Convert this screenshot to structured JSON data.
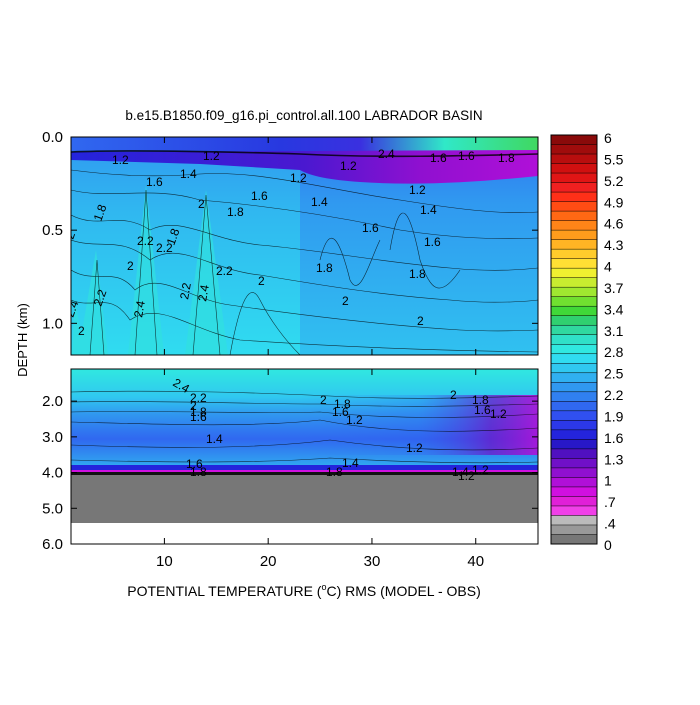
{
  "chart_data": {
    "type": "heatmap",
    "title": "b.e15.B1850.f09_g16.pi_control.all.100 LABRADOR BASIN",
    "xlabel": "POTENTIAL TEMPERATURE (",
    "xlabel_unit": "C) RMS (MODEL - OBS)",
    "xlabel_degree": "o",
    "ylabel": "DEPTH (km)",
    "xlim": [
      1,
      46
    ],
    "x_ticks": [
      10,
      20,
      30,
      40
    ],
    "x_tick_labels": [
      "10",
      "20",
      "30",
      "40"
    ],
    "upper_panel": {
      "ylim": [
        0,
        1.17
      ],
      "y_ticks": [
        0.0,
        0.5,
        1.0
      ],
      "y_tick_labels": [
        "0.0",
        "0.5",
        "1.0"
      ]
    },
    "lower_panel": {
      "ylim": [
        1.1,
        6.0
      ],
      "y_ticks": [
        2.0,
        3.0,
        4.0,
        5.0,
        6.0
      ],
      "y_tick_labels": [
        "2.0",
        "3.0",
        "4.0",
        "5.0",
        "6.0"
      ]
    },
    "colorbar": {
      "labels": [
        "6",
        "5.5",
        "5.2",
        "4.9",
        "4.6",
        "4.3",
        "4",
        "3.7",
        "3.4",
        "3.1",
        "2.8",
        "2.5",
        "2.2",
        "1.9",
        "1.6",
        "1.3",
        "1",
        ".7",
        ".4",
        "0"
      ],
      "colors": [
        "#8a0a0a",
        "#a00c0c",
        "#b80e0e",
        "#d01010",
        "#e01515",
        "#f02020",
        "#ff3018",
        "#ff4c14",
        "#ff6814",
        "#ff8418",
        "#ff9c1c",
        "#ffb424",
        "#ffcc2c",
        "#ffe034",
        "#f0f030",
        "#c8ec30",
        "#a0e830",
        "#70e030",
        "#40d838",
        "#30d070",
        "#30d8a0",
        "#30e0c8",
        "#30e8e0",
        "#30dcf0",
        "#30c8f0",
        "#30b0f0",
        "#3098f0",
        "#3080f0",
        "#3068f0",
        "#3050f0",
        "#2c38e8",
        "#2424dc",
        "#2818c8",
        "#5010c0",
        "#7010c8",
        "#9010d0",
        "#b010d8",
        "#d010e0",
        "#e020d8",
        "#f040e8",
        "#bbbbbb",
        "#999999",
        "#777777"
      ]
    },
    "missing_color": "#777777",
    "contour_labels_upper": [
      "1.2",
      "1.2",
      "1.6",
      "1.8",
      "1.4",
      "2",
      "2.2",
      "1.8",
      "2",
      "2",
      "1.8",
      "1.6",
      "2.2",
      "2.2",
      "2.4",
      "2.4",
      "2.2",
      "2.4",
      "2.2",
      "2",
      "2",
      "1.8",
      "1.4",
      "1.2",
      "1.6",
      "1.6",
      "1.2",
      "1.4",
      "1.6",
      "1.8",
      "2",
      "2",
      "1.2",
      "1.6",
      "1.8",
      "2.4"
    ],
    "contour_labels_lower": [
      "2.4",
      "2.2",
      "2",
      "1.8",
      "1.6",
      "1.4",
      "2",
      "1.8",
      "1.6",
      "2",
      "1.8",
      "1.6",
      "1.2",
      "1.2",
      "1.4",
      "1.2",
      "1.6",
      "1.8",
      "1.8",
      "1.4",
      "1.2",
      "1.2"
    ]
  }
}
